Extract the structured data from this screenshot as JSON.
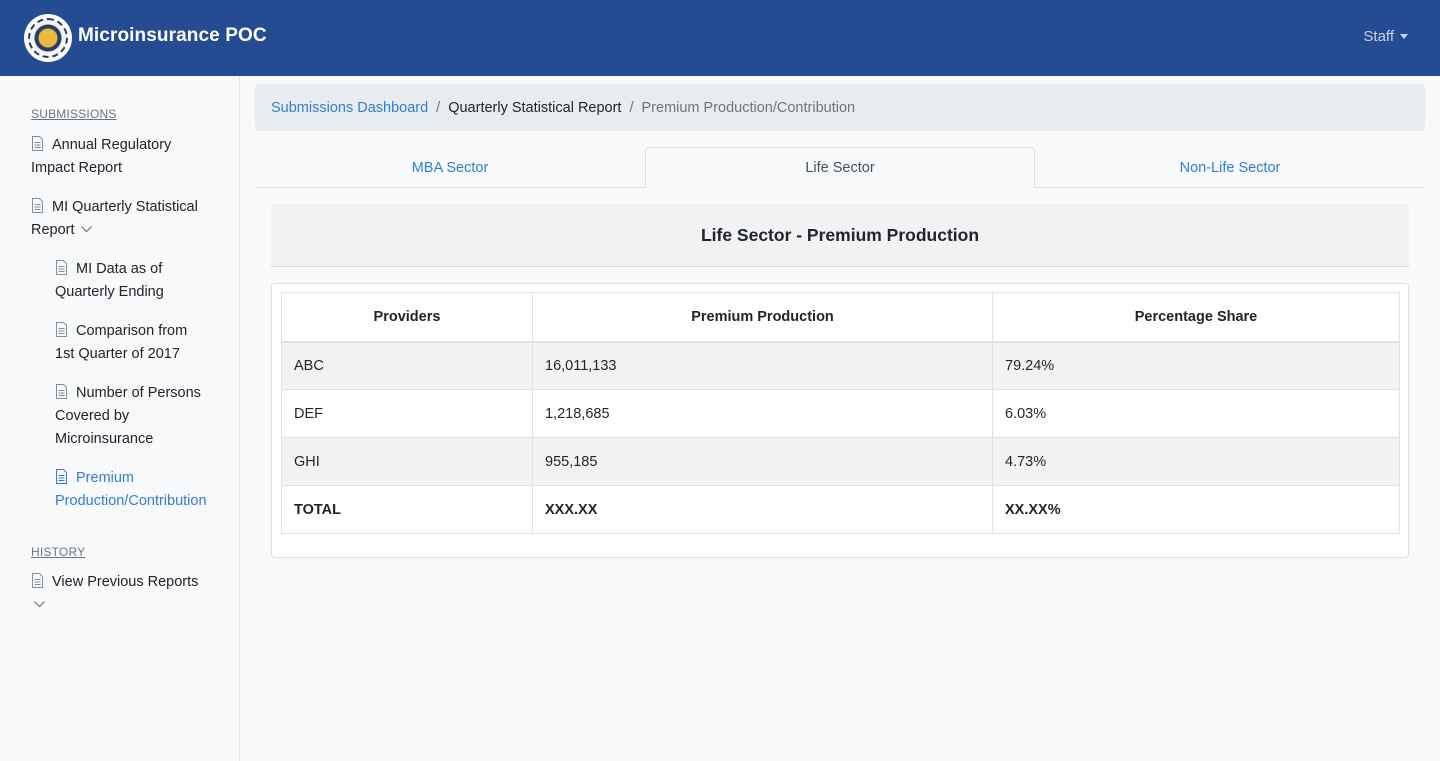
{
  "navbar": {
    "brand": "Microinsurance POC",
    "user_label": "Staff"
  },
  "sidebar": {
    "submissions_head": "SUBMISSIONS",
    "items": [
      {
        "label_line1": "Annual Regulatory",
        "label_line2": "Impact Report"
      },
      {
        "label_line1": "MI Quarterly Statistical",
        "label_line2": "Report"
      },
      {
        "label_line1": "MI Data as of",
        "label_line2": "Quarterly Ending"
      },
      {
        "label_line1": "Comparison from",
        "label_line2": "1st Quarter of 2017"
      },
      {
        "label_line1": "Number of Persons",
        "label_line2": "Covered by",
        "label_line3": "Microinsurance"
      },
      {
        "label_line1": "Premium",
        "label_line2": "Production/Contribution"
      }
    ],
    "history_head": "HISTORY",
    "history_item": "View Previous Reports"
  },
  "breadcrumb": {
    "link": "Submissions Dashboard",
    "sep": "/",
    "current": "Quarterly Statistical Report",
    "last": "Premium Production/Contribution"
  },
  "tabs": [
    {
      "label": "MBA Sector"
    },
    {
      "label": "Life Sector"
    },
    {
      "label": "Non-Life Sector"
    }
  ],
  "card": {
    "title": "Life Sector - Premium Production"
  },
  "table": {
    "headers": [
      "Providers",
      "Premium Production",
      "Percentage Share"
    ],
    "rows": [
      [
        "ABC",
        "16,011,133",
        "79.24%"
      ],
      [
        "DEF",
        "1,218,685",
        "6.03%"
      ],
      [
        "GHI",
        "955,185",
        "4.73%"
      ]
    ],
    "total": [
      "TOTAL",
      "XXX.XX",
      "XX.XX%"
    ]
  },
  "colors": {
    "navbar": "#254b93",
    "link": "#2f7fd6"
  }
}
